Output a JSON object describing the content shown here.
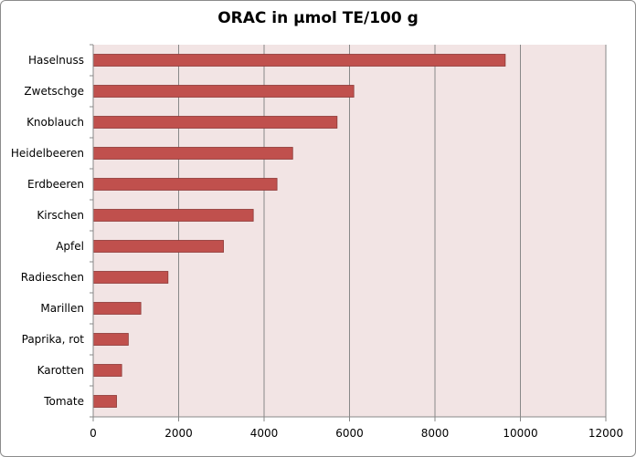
{
  "chart_data": {
    "type": "bar",
    "orientation": "horizontal",
    "title": "ORAC in µmol TE/100 g",
    "xlabel": "",
    "ylabel": "",
    "xlim": [
      0,
      12000
    ],
    "xticks": [
      0,
      2000,
      4000,
      6000,
      8000,
      10000,
      12000
    ],
    "grid": true,
    "legend": "none",
    "categories": [
      "Haselnuss",
      "Zwetschge",
      "Knoblauch",
      "Heidelbeeren",
      "Erdbeeren",
      "Kirschen",
      "Apfel",
      "Radieschen",
      "Marillen",
      "Paprika, rot",
      "Karotten",
      "Tomate"
    ],
    "values": [
      9645,
      6100,
      5708,
      4669,
      4302,
      3747,
      3049,
      1750,
      1115,
      821,
      666,
      546
    ]
  },
  "colors": {
    "bar_fill": "#c0504d",
    "bar_edge": "#8c3836",
    "plot_background": "#f2e4e4",
    "gridline": "#888888",
    "axis": "#888888"
  }
}
